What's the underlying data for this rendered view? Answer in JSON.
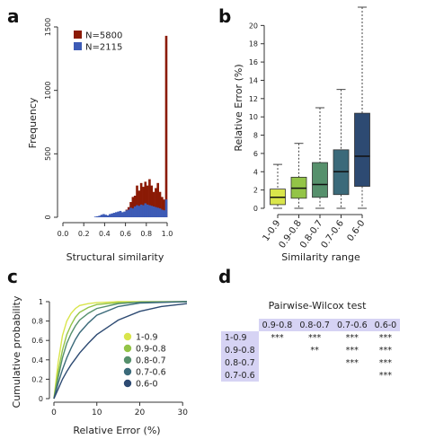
{
  "panels": {
    "a": {
      "label": "a",
      "chart_data": {
        "type": "histogram",
        "xlabel": "Structural similarity",
        "ylabel": "Frequency",
        "xticks": [
          "0.0",
          "0.2",
          "0.4",
          "0.6",
          "0.8",
          "1.0"
        ],
        "yticks": [
          "0",
          "500",
          "1000",
          "1500"
        ],
        "xlim": [
          0,
          1
        ],
        "ylim": [
          0,
          1500
        ],
        "bin_width": 0.02,
        "series": [
          {
            "name": "N=5800",
            "color": "#8b1a05",
            "values": [
              [
                0.5,
                10
              ],
              [
                0.52,
                20
              ],
              [
                0.54,
                30
              ],
              [
                0.56,
                25
              ],
              [
                0.58,
                35
              ],
              [
                0.6,
                60
              ],
              [
                0.62,
                80
              ],
              [
                0.64,
                120
              ],
              [
                0.66,
                160
              ],
              [
                0.68,
                170
              ],
              [
                0.7,
                250
              ],
              [
                0.72,
                210
              ],
              [
                0.74,
                270
              ],
              [
                0.76,
                240
              ],
              [
                0.78,
                280
              ],
              [
                0.8,
                250
              ],
              [
                0.82,
                300
              ],
              [
                0.84,
                250
              ],
              [
                0.86,
                200
              ],
              [
                0.88,
                230
              ],
              [
                0.9,
                270
              ],
              [
                0.92,
                200
              ],
              [
                0.94,
                160
              ],
              [
                0.96,
                140
              ],
              [
                0.98,
                1430
              ]
            ]
          },
          {
            "name": "N=2115",
            "color": "#3d5bb6",
            "values": [
              [
                0.3,
                5
              ],
              [
                0.32,
                8
              ],
              [
                0.34,
                12
              ],
              [
                0.36,
                20
              ],
              [
                0.38,
                25
              ],
              [
                0.4,
                20
              ],
              [
                0.42,
                15
              ],
              [
                0.44,
                25
              ],
              [
                0.46,
                30
              ],
              [
                0.48,
                35
              ],
              [
                0.5,
                40
              ],
              [
                0.52,
                45
              ],
              [
                0.54,
                50
              ],
              [
                0.56,
                40
              ],
              [
                0.58,
                45
              ],
              [
                0.6,
                55
              ],
              [
                0.62,
                60
              ],
              [
                0.64,
                75
              ],
              [
                0.66,
                70
              ],
              [
                0.68,
                85
              ],
              [
                0.7,
                95
              ],
              [
                0.72,
                90
              ],
              [
                0.74,
                100
              ],
              [
                0.76,
                95
              ],
              [
                0.78,
                110
              ],
              [
                0.8,
                100
              ],
              [
                0.82,
                95
              ],
              [
                0.84,
                90
              ],
              [
                0.86,
                85
              ],
              [
                0.88,
                80
              ],
              [
                0.9,
                75
              ],
              [
                0.92,
                70
              ],
              [
                0.94,
                60
              ],
              [
                0.96,
                55
              ],
              [
                0.98,
                140
              ]
            ]
          }
        ]
      }
    },
    "b": {
      "label": "b",
      "chart_data": {
        "type": "boxplot",
        "xlabel": "Similarity range",
        "ylabel": "Relative Error (%)",
        "ylim": [
          0,
          22
        ],
        "yticks": [
          "0",
          "2",
          "4",
          "6",
          "8",
          "10",
          "12",
          "14",
          "16",
          "18",
          "20"
        ],
        "categories": [
          "1-0.9",
          "0.9-0.8",
          "0.8-0.7",
          "0.7-0.6",
          "0.6-0"
        ],
        "boxes": [
          {
            "cat": "1-0.9",
            "min": 0,
            "q1": 0.4,
            "median": 1.2,
            "q3": 2.1,
            "max": 4.8,
            "color": "#d9e54b"
          },
          {
            "cat": "0.9-0.8",
            "min": 0,
            "q1": 1.1,
            "median": 2.2,
            "q3": 3.4,
            "max": 7.1,
            "color": "#93c447"
          },
          {
            "cat": "0.8-0.7",
            "min": 0,
            "q1": 1.2,
            "median": 2.6,
            "q3": 5.0,
            "max": 11.0,
            "color": "#56906c"
          },
          {
            "cat": "0.7-0.6",
            "min": 0,
            "q1": 1.5,
            "median": 4.0,
            "q3": 6.4,
            "max": 13.0,
            "color": "#3b6a7a"
          },
          {
            "cat": "0.6-0",
            "min": 0,
            "q1": 2.4,
            "median": 5.7,
            "q3": 10.4,
            "max": 22.0,
            "color": "#2d4a72"
          }
        ]
      }
    },
    "c": {
      "label": "c",
      "chart_data": {
        "type": "line",
        "xlabel": "Relative Error (%)",
        "ylabel": "Cumulative probability",
        "xlim": [
          0,
          31
        ],
        "ylim": [
          0,
          1
        ],
        "xticks": [
          "0",
          "10",
          "20",
          "30"
        ],
        "yticks": [
          "0",
          "0.2",
          "0.4",
          "0.6",
          "0.8",
          "1"
        ],
        "series": [
          {
            "name": "1-0.9",
            "color": "#d9e54b",
            "points": [
              [
                0,
                0
              ],
              [
                1,
                0.38
              ],
              [
                2,
                0.65
              ],
              [
                3,
                0.8
              ],
              [
                4,
                0.88
              ],
              [
                5,
                0.93
              ],
              [
                6,
                0.96
              ],
              [
                8,
                0.98
              ],
              [
                10,
                0.99
              ],
              [
                15,
                1.0
              ],
              [
                31,
                1.0
              ]
            ]
          },
          {
            "name": "0.9-0.8",
            "color": "#93c447",
            "points": [
              [
                0,
                0
              ],
              [
                1,
                0.28
              ],
              [
                2,
                0.5
              ],
              [
                3,
                0.66
              ],
              [
                4,
                0.76
              ],
              [
                5,
                0.84
              ],
              [
                6,
                0.89
              ],
              [
                8,
                0.94
              ],
              [
                10,
                0.97
              ],
              [
                15,
                0.99
              ],
              [
                31,
                1.0
              ]
            ]
          },
          {
            "name": "0.8-0.7",
            "color": "#56906c",
            "points": [
              [
                0,
                0
              ],
              [
                1,
                0.22
              ],
              [
                2,
                0.42
              ],
              [
                3,
                0.57
              ],
              [
                4,
                0.67
              ],
              [
                5,
                0.75
              ],
              [
                6,
                0.81
              ],
              [
                8,
                0.88
              ],
              [
                10,
                0.93
              ],
              [
                15,
                0.98
              ],
              [
                20,
                0.995
              ],
              [
                31,
                1.0
              ]
            ]
          },
          {
            "name": "0.7-0.6",
            "color": "#3b6a7a",
            "points": [
              [
                0,
                0
              ],
              [
                1,
                0.16
              ],
              [
                2,
                0.3
              ],
              [
                3,
                0.42
              ],
              [
                4,
                0.52
              ],
              [
                5,
                0.61
              ],
              [
                6,
                0.68
              ],
              [
                8,
                0.78
              ],
              [
                10,
                0.86
              ],
              [
                15,
                0.95
              ],
              [
                20,
                0.985
              ],
              [
                31,
                1.0
              ]
            ]
          },
          {
            "name": "0.6-0",
            "color": "#2d4a72",
            "points": [
              [
                0,
                0
              ],
              [
                1,
                0.1
              ],
              [
                2,
                0.2
              ],
              [
                3,
                0.28
              ],
              [
                4,
                0.35
              ],
              [
                5,
                0.41
              ],
              [
                6,
                0.47
              ],
              [
                8,
                0.57
              ],
              [
                10,
                0.66
              ],
              [
                15,
                0.81
              ],
              [
                20,
                0.9
              ],
              [
                25,
                0.95
              ],
              [
                31,
                0.98
              ]
            ]
          }
        ]
      }
    },
    "d": {
      "label": "d",
      "chart_data": {
        "type": "table",
        "title": "Pairwise-Wilcox test",
        "columns": [
          "",
          "0.9-0.8",
          "0.8-0.7",
          "0.7-0.6",
          "0.6-0"
        ],
        "rows": [
          [
            "1-0.9",
            "***",
            "***",
            "***",
            "***"
          ],
          [
            "0.9-0.8",
            "",
            "**",
            "***",
            "***"
          ],
          [
            "0.8-0.7",
            "",
            "",
            "***",
            "***"
          ],
          [
            "0.7-0.6",
            "",
            "",
            "",
            "***"
          ]
        ]
      }
    }
  }
}
